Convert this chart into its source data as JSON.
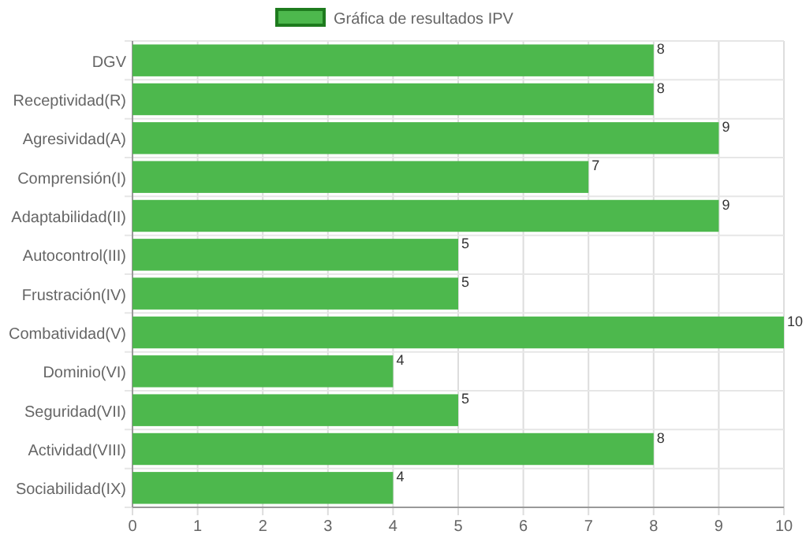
{
  "chart_data": {
    "type": "bar",
    "orientation": "horizontal",
    "categories": [
      "DGV",
      "Receptividad(R)",
      "Agresividad(A)",
      "Comprensión(I)",
      "Adaptabilidad(II)",
      "Autocontrol(III)",
      "Frustración(IV)",
      "Combatividad(V)",
      "Dominio(VI)",
      "Seguridad(VII)",
      "Actividad(VIII)",
      "Sociabilidad(IX)"
    ],
    "series": [
      {
        "name": "Gráfica de resultados IPV",
        "color": "#4db84d",
        "values": [
          8,
          8,
          9,
          7,
          9,
          5,
          5,
          10,
          4,
          5,
          8,
          4
        ]
      }
    ],
    "xlim": [
      0,
      10
    ],
    "xticks": [
      0,
      1,
      2,
      3,
      4,
      5,
      6,
      7,
      8,
      9,
      10
    ],
    "grid": true,
    "legend": "top",
    "data_labels": true
  }
}
